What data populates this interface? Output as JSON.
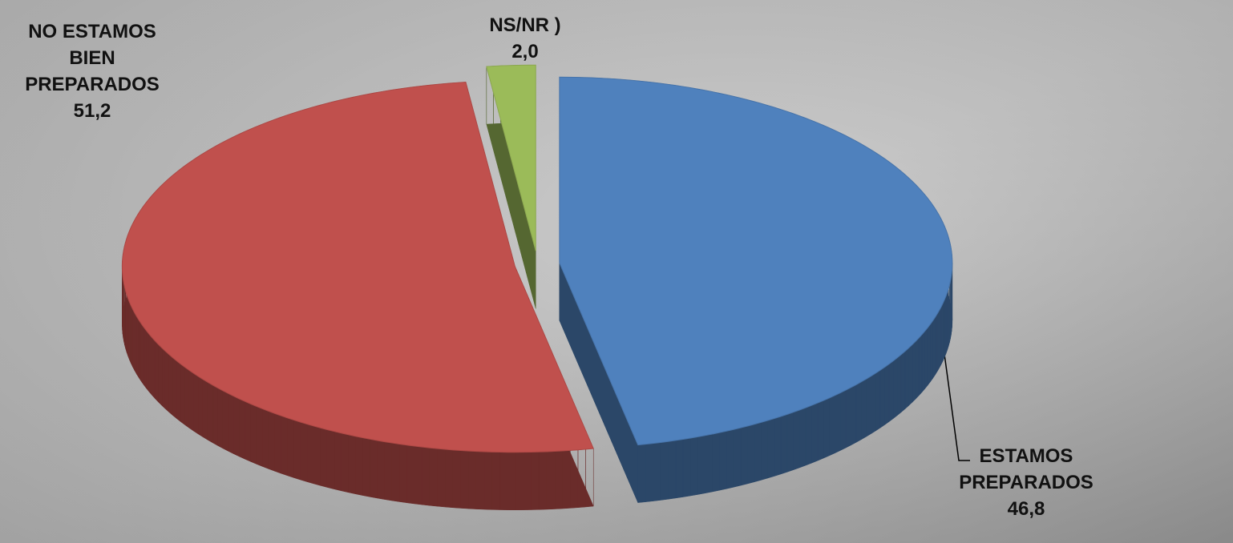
{
  "chart_data": {
    "type": "pie",
    "categories": [
      "ESTAMOS PREPARADOS",
      "NO ESTAMOS BIEN PREPARADOS",
      "NS/NR )"
    ],
    "values": [
      46.8,
      51.2,
      2.0
    ],
    "value_labels": [
      "46,8",
      "51,2",
      "2,0"
    ],
    "colors": [
      "#4f81bd",
      "#c0504d",
      "#9bbb59"
    ]
  }
}
